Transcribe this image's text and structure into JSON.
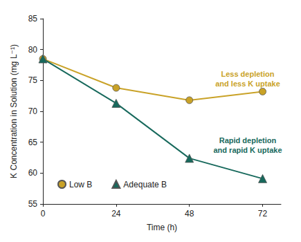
{
  "chart_data": {
    "type": "line",
    "x_label": "Time (h)",
    "y_label": "K Concentration in Solution (mg L⁻¹)",
    "x": [
      0,
      24,
      48,
      72
    ],
    "series": [
      {
        "name": "Low B",
        "color": "#c9a227",
        "marker": "circle",
        "values": [
          78.5,
          73.8,
          71.8,
          73.2
        ],
        "annotation": "Less depletion\nand less K uptake"
      },
      {
        "name": "Adequate B",
        "color": "#17695c",
        "marker": "triangle",
        "values": [
          78.5,
          71.3,
          62.4,
          59.1
        ],
        "annotation": "Rapid depletion\nand rapid K uptake"
      }
    ],
    "xlim": [
      0,
      78
    ],
    "xticks": [
      0,
      24,
      48,
      72
    ],
    "ylim": [
      55,
      85
    ],
    "yticks": [
      55,
      60,
      65,
      70,
      75,
      80,
      85
    ],
    "grid": false,
    "legend": "lower left"
  }
}
